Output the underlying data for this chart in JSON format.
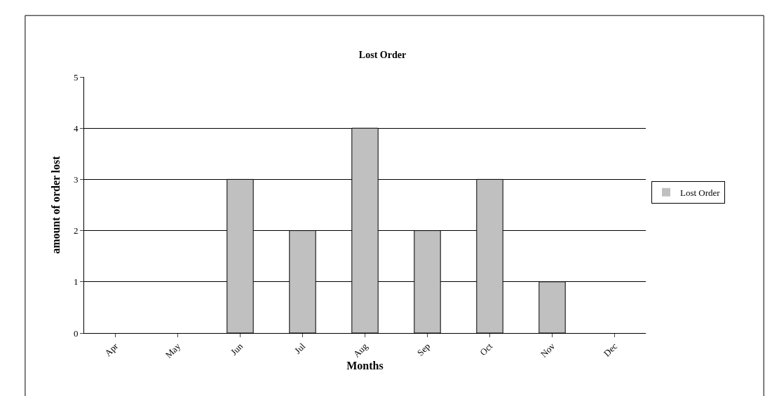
{
  "chart_data": {
    "type": "bar",
    "title": "Lost Order",
    "xlabel": "Months",
    "ylabel": "amount of order lost",
    "categories": [
      "Apr",
      "May",
      "Jun",
      "Jul",
      "Aug",
      "Sep",
      "Oct",
      "Nov",
      "Dec"
    ],
    "series": [
      {
        "name": "Lost Order",
        "color": "#c0c0c0",
        "values": [
          0,
          0,
          3,
          2,
          4,
          2,
          3,
          1,
          0
        ]
      }
    ],
    "ylim": [
      0,
      5
    ],
    "yticks": [
      0,
      1,
      2,
      3,
      4,
      5
    ],
    "grid": "y",
    "legend": "right"
  }
}
